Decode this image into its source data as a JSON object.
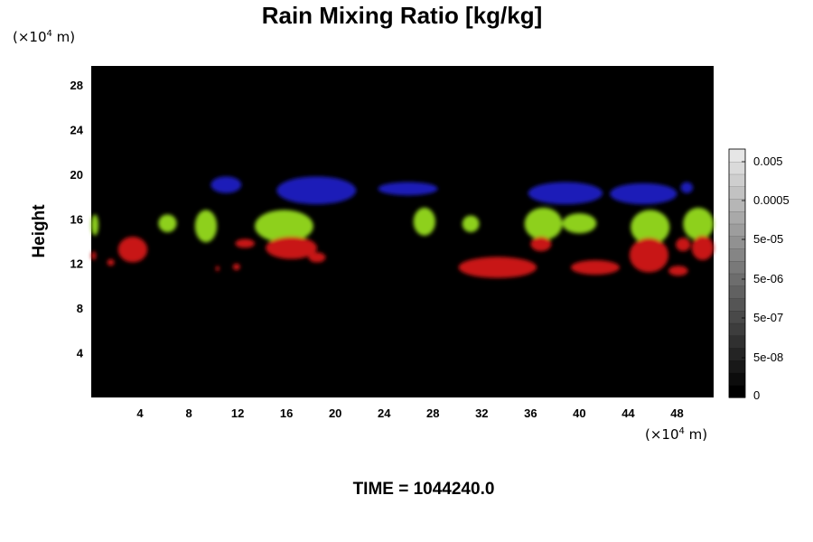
{
  "chart_data": {
    "type": "heatmap",
    "title": "Rain Mixing Ratio [kg/kg]",
    "ylabel": "Height",
    "y_unit_prefix": "(×10",
    "y_unit_exp": "4",
    "y_unit_suffix": " m)",
    "x_unit_prefix": "(×10",
    "x_unit_exp": "4",
    "x_unit_suffix": " m)",
    "xlim": [
      0,
      51
    ],
    "ylim": [
      0,
      29.7
    ],
    "x_ticks": [
      4,
      8,
      12,
      16,
      20,
      24,
      28,
      32,
      36,
      40,
      44,
      48
    ],
    "x_tick_labels": [
      "4",
      "8",
      "12",
      "16",
      "20",
      "24",
      "28",
      "32",
      "36",
      "40",
      "44",
      "48"
    ],
    "y_ticks": [
      4,
      8,
      12,
      16,
      20,
      24,
      28
    ],
    "y_tick_labels": [
      "4",
      "8",
      "12",
      "16",
      "20",
      "24",
      "28"
    ],
    "background_color": "#000000",
    "colorbar": {
      "scale": "log",
      "tick_labels": [
        "0.005",
        "0.0005",
        "5e-05",
        "5e-06",
        "5e-07",
        "5e-08",
        "0"
      ],
      "levels": 20
    },
    "series_colors": {
      "upper": "#1a1fb8",
      "middle": "#8ed01a",
      "lower": "#c81414"
    },
    "regions": [
      {
        "band": "upper",
        "x": [
          9.8,
          12.3
        ],
        "y": [
          18.3,
          19.8
        ]
      },
      {
        "band": "upper",
        "x": [
          15.2,
          21.7
        ],
        "y": [
          17.3,
          19.8
        ]
      },
      {
        "band": "upper",
        "x": [
          23.5,
          28.4
        ],
        "y": [
          18.1,
          19.3
        ]
      },
      {
        "band": "upper",
        "x": [
          35.8,
          41.9
        ],
        "y": [
          17.3,
          19.3
        ]
      },
      {
        "band": "upper",
        "x": [
          42.5,
          48.0
        ],
        "y": [
          17.3,
          19.2
        ]
      },
      {
        "band": "upper",
        "x": [
          48.3,
          49.3
        ],
        "y": [
          18.3,
          19.3
        ]
      },
      {
        "band": "middle",
        "x": [
          0.0,
          0.6
        ],
        "y": [
          14.5,
          16.4
        ]
      },
      {
        "band": "middle",
        "x": [
          5.5,
          7.0
        ],
        "y": [
          14.8,
          16.4
        ]
      },
      {
        "band": "middle",
        "x": [
          8.5,
          10.3
        ],
        "y": [
          13.9,
          16.8
        ]
      },
      {
        "band": "middle",
        "x": [
          13.4,
          18.2
        ],
        "y": [
          13.9,
          16.8
        ]
      },
      {
        "band": "middle",
        "x": [
          26.4,
          28.2
        ],
        "y": [
          14.5,
          17.0
        ]
      },
      {
        "band": "middle",
        "x": [
          30.4,
          31.8
        ],
        "y": [
          14.8,
          16.3
        ]
      },
      {
        "band": "middle",
        "x": [
          35.5,
          38.6
        ],
        "y": [
          14.1,
          17.0
        ]
      },
      {
        "band": "middle",
        "x": [
          38.6,
          41.4
        ],
        "y": [
          14.7,
          16.5
        ]
      },
      {
        "band": "middle",
        "x": [
          44.2,
          47.4
        ],
        "y": [
          13.7,
          16.8
        ]
      },
      {
        "band": "middle",
        "x": [
          48.5,
          51.0
        ],
        "y": [
          14.1,
          17.0
        ]
      },
      {
        "band": "lower",
        "x": [
          0.0,
          0.4
        ],
        "y": [
          12.3,
          13.1
        ]
      },
      {
        "band": "lower",
        "x": [
          1.3,
          1.9
        ],
        "y": [
          11.8,
          12.4
        ]
      },
      {
        "band": "lower",
        "x": [
          2.2,
          4.6
        ],
        "y": [
          12.1,
          14.4
        ]
      },
      {
        "band": "lower",
        "x": [
          10.2,
          10.5
        ],
        "y": [
          11.3,
          11.8
        ]
      },
      {
        "band": "lower",
        "x": [
          11.6,
          12.2
        ],
        "y": [
          11.4,
          12.0
        ]
      },
      {
        "band": "lower",
        "x": [
          11.8,
          13.4
        ],
        "y": [
          13.4,
          14.2
        ]
      },
      {
        "band": "lower",
        "x": [
          14.3,
          18.5
        ],
        "y": [
          12.4,
          14.4
        ]
      },
      {
        "band": "lower",
        "x": [
          17.8,
          19.2
        ],
        "y": [
          12.1,
          13.0
        ]
      },
      {
        "band": "lower",
        "x": [
          30.1,
          36.5
        ],
        "y": [
          10.7,
          12.6
        ]
      },
      {
        "band": "lower",
        "x": [
          36.0,
          37.7
        ],
        "y": [
          13.1,
          14.4
        ]
      },
      {
        "band": "lower",
        "x": [
          39.3,
          43.3
        ],
        "y": [
          11.0,
          12.3
        ]
      },
      {
        "band": "lower",
        "x": [
          44.1,
          47.3
        ],
        "y": [
          11.2,
          14.3
        ]
      },
      {
        "band": "lower",
        "x": [
          47.3,
          48.9
        ],
        "y": [
          10.9,
          11.8
        ]
      },
      {
        "band": "lower",
        "x": [
          47.9,
          49.1
        ],
        "y": [
          13.1,
          14.3
        ]
      },
      {
        "band": "lower",
        "x": [
          49.2,
          51.0
        ],
        "y": [
          12.3,
          14.5
        ]
      }
    ]
  },
  "time_label": "TIME = 1044240.0"
}
